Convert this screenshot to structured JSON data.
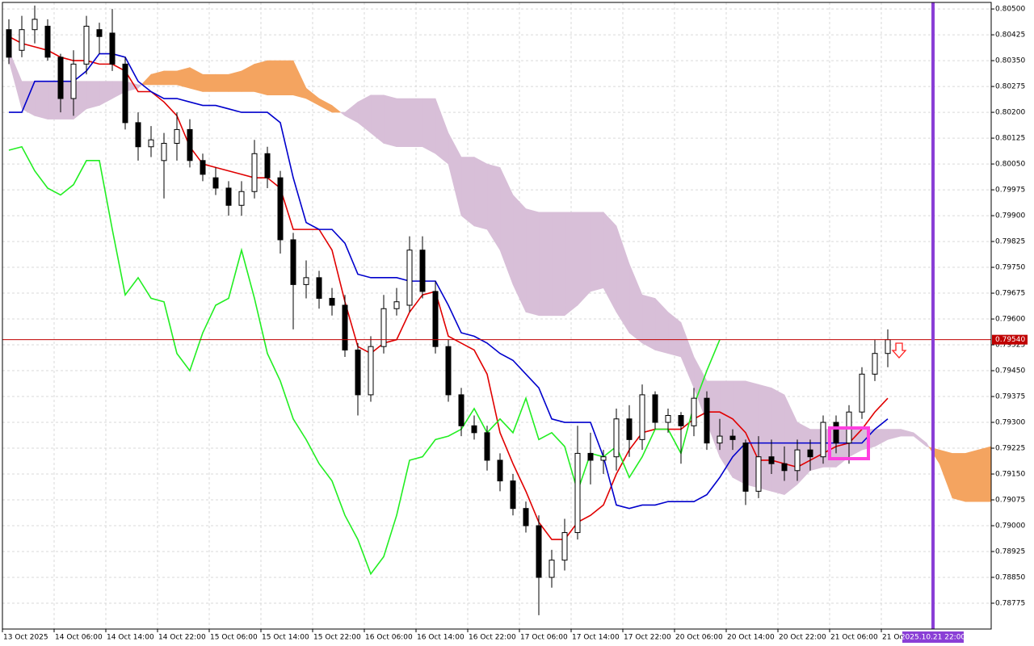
{
  "chart_data": {
    "type": "candlestick",
    "categories": [
      "13 Oct 2025",
      null,
      null,
      null,
      "14 Oct 06:00",
      null,
      null,
      null,
      "14 Oct 14:00",
      null,
      null,
      null,
      "14 Oct 22:00",
      null,
      null,
      null,
      "15 Oct 06:00",
      null,
      null,
      null,
      "15 Oct 14:00",
      null,
      null,
      null,
      "15 Oct 22:00",
      null,
      null,
      null,
      "16 Oct 06:00",
      null,
      null,
      null,
      "16 Oct 14:00",
      null,
      null,
      null,
      "16 Oct 22:00",
      null,
      null,
      null,
      "17 Oct 06:00",
      null,
      null,
      null,
      "17 Oct 14:00",
      null,
      null,
      null,
      "17 Oct 22:00",
      null,
      null,
      null,
      "20 Oct 06:00",
      null,
      null,
      null,
      "20 Oct 14:00",
      null,
      null,
      null,
      "20 Oct 22:00",
      null,
      null,
      null,
      "21 Oct 06:00",
      null,
      null,
      null,
      "21 Oc",
      null,
      null,
      null,
      null,
      null,
      null,
      null,
      null
    ],
    "open": [
      0.8044,
      0.8038,
      0.8044,
      0.8045,
      0.8036,
      0.8024,
      0.8034,
      0.8044,
      0.8043,
      0.8034,
      0.8017,
      0.801,
      0.8006,
      0.8011,
      0.8015,
      0.8006,
      0.8001,
      0.7998,
      0.7993,
      0.7997,
      0.8008,
      0.8001,
      0.7983,
      0.797,
      0.7972,
      0.7966,
      0.7964,
      0.7951,
      0.7938,
      0.7952,
      0.7963,
      0.7964,
      0.798,
      0.7968,
      0.7952,
      0.7938,
      0.7929,
      0.7927,
      0.7919,
      0.7913,
      0.7905,
      0.79,
      0.7885,
      0.789,
      0.7898,
      0.7921,
      0.7919,
      0.792,
      0.7931,
      0.7925,
      0.7938,
      0.793,
      0.7932,
      0.7929,
      0.7937,
      0.7924,
      0.7926,
      0.7924,
      0.791,
      0.792,
      0.7918,
      0.7916,
      0.7922,
      0.792,
      0.793,
      0.7924,
      0.7933,
      0.7944,
      0.795,
      null,
      null,
      null,
      null,
      null,
      null,
      null,
      null
    ],
    "high": [
      0.8047,
      0.8048,
      0.8051,
      0.8047,
      0.8037,
      0.8038,
      0.8048,
      0.8046,
      0.805,
      0.8036,
      0.802,
      0.8016,
      0.8014,
      0.802,
      0.8018,
      0.8008,
      0.8004,
      0.8,
      0.8,
      0.8012,
      0.801,
      0.8003,
      0.7985,
      0.7977,
      0.7974,
      0.7969,
      0.7967,
      0.7953,
      0.7955,
      0.7967,
      0.7969,
      0.7984,
      0.7984,
      0.7971,
      0.7954,
      0.794,
      0.7932,
      0.7929,
      0.7921,
      0.7915,
      0.7907,
      0.7903,
      0.7893,
      0.7902,
      0.7929,
      0.7927,
      0.7922,
      0.7934,
      0.7935,
      0.7941,
      0.7939,
      0.7934,
      0.7933,
      0.794,
      0.7939,
      0.7931,
      0.7928,
      0.7925,
      0.7926,
      0.7925,
      0.7923,
      0.7925,
      0.7925,
      0.7932,
      0.7932,
      0.7935,
      0.7946,
      0.7954,
      0.7957,
      null,
      null,
      null,
      null,
      null,
      null,
      null,
      null
    ],
    "low": [
      0.8034,
      0.8036,
      0.804,
      0.8035,
      0.802,
      0.8019,
      0.8031,
      0.8037,
      0.8032,
      0.8015,
      0.8006,
      0.8007,
      0.7995,
      0.8006,
      0.8004,
      0.8,
      0.7996,
      0.799,
      0.799,
      0.7995,
      0.7998,
      0.7979,
      0.7957,
      0.7966,
      0.7963,
      0.7961,
      0.7949,
      0.7932,
      0.7936,
      0.795,
      0.7961,
      0.7962,
      0.7966,
      0.795,
      0.7936,
      0.7926,
      0.7925,
      0.7916,
      0.791,
      0.7903,
      0.7898,
      0.7874,
      0.7882,
      0.7887,
      0.7896,
      0.7912,
      0.7915,
      0.7916,
      0.792,
      0.7922,
      0.7928,
      0.7927,
      0.7918,
      0.7926,
      0.7922,
      0.7922,
      0.7922,
      0.7906,
      0.7908,
      0.7915,
      0.7913,
      0.7913,
      0.7916,
      0.7918,
      0.7921,
      0.7918,
      0.7931,
      0.7942,
      0.7946,
      null,
      null,
      null,
      null,
      null,
      null,
      null,
      null
    ],
    "close": [
      0.8036,
      0.8044,
      0.8047,
      0.8036,
      0.8024,
      0.8034,
      0.8045,
      0.8042,
      0.8034,
      0.8017,
      0.801,
      0.8012,
      0.8011,
      0.8015,
      0.8006,
      0.8002,
      0.7998,
      0.7993,
      0.7997,
      0.8008,
      0.8001,
      0.7983,
      0.797,
      0.7972,
      0.7966,
      0.7964,
      0.7951,
      0.7938,
      0.7952,
      0.7963,
      0.7965,
      0.798,
      0.7968,
      0.7952,
      0.7938,
      0.7929,
      0.7927,
      0.7919,
      0.7913,
      0.7905,
      0.79,
      0.7885,
      0.789,
      0.7898,
      0.7921,
      0.7919,
      0.792,
      0.7931,
      0.7925,
      0.7938,
      0.793,
      0.7932,
      0.7929,
      0.7937,
      0.7924,
      0.7926,
      0.7925,
      0.791,
      0.792,
      0.7918,
      0.7916,
      0.7922,
      0.792,
      0.793,
      0.7924,
      0.7933,
      0.7944,
      0.795,
      0.7954,
      null,
      null,
      null,
      null,
      null,
      null,
      null,
      null
    ],
    "bull_color": "#ffffff",
    "bear_color": "#000000",
    "lines": [
      {
        "color": "#e00000",
        "values": [
          0.8042,
          0.804,
          0.8039,
          0.8038,
          0.8036,
          0.8035,
          0.8035,
          0.8034,
          0.8034,
          0.8032,
          0.8026,
          0.8026,
          0.8023,
          0.8019,
          0.801,
          0.8005,
          0.8004,
          0.8003,
          0.8002,
          0.8001,
          0.8001,
          0.7998,
          0.7986,
          0.7986,
          0.7986,
          0.798,
          0.7965,
          0.7952,
          0.795,
          0.7953,
          0.7954,
          0.7962,
          0.7967,
          0.7968,
          0.7955,
          0.7953,
          0.7951,
          0.7944,
          0.7927,
          0.7918,
          0.791,
          0.7901,
          0.7896,
          0.7896,
          0.7901,
          0.7903,
          0.7906,
          0.7915,
          0.7922,
          0.7927,
          0.7928,
          0.7928,
          0.7928,
          0.7931,
          0.7933,
          0.7933,
          0.7931,
          0.7927,
          0.7919,
          0.7919,
          0.7918,
          0.7917,
          0.7919,
          0.7921,
          0.7923,
          0.7924,
          0.7928,
          0.7933,
          0.7937,
          null,
          null,
          null,
          null,
          null,
          null,
          null,
          null
        ]
      },
      {
        "color": "#0000cc",
        "values": [
          0.802,
          0.802,
          0.8029,
          0.8029,
          0.8029,
          0.8029,
          0.8032,
          0.8037,
          0.8037,
          0.8036,
          0.8029,
          0.8026,
          0.8024,
          0.8024,
          0.8023,
          0.8022,
          0.8022,
          0.8021,
          0.802,
          0.802,
          0.802,
          0.8017,
          0.8001,
          0.7988,
          0.7986,
          0.7986,
          0.7982,
          0.7973,
          0.7972,
          0.7972,
          0.7972,
          0.7971,
          0.7971,
          0.7971,
          0.7964,
          0.7956,
          0.7955,
          0.7953,
          0.795,
          0.7948,
          0.7944,
          0.794,
          0.7931,
          0.793,
          0.793,
          0.793,
          0.792,
          0.7906,
          0.7905,
          0.7906,
          0.7906,
          0.7907,
          0.7907,
          0.7907,
          0.7909,
          0.7914,
          0.792,
          0.7924,
          0.7924,
          0.7924,
          0.7924,
          0.7924,
          0.7924,
          0.7924,
          0.7924,
          0.7924,
          0.7924,
          0.7928,
          0.7931,
          null,
          null,
          null,
          null,
          null,
          null,
          null,
          null
        ]
      },
      {
        "color": "#22ee22",
        "values": [
          0.8009,
          0.801,
          0.8003,
          0.7998,
          0.7996,
          0.7999,
          0.8006,
          0.8006,
          0.7986,
          0.7967,
          0.7972,
          0.7966,
          0.7965,
          0.795,
          0.7945,
          0.7956,
          0.7964,
          0.7966,
          0.798,
          0.7966,
          0.795,
          0.7942,
          0.7931,
          0.7925,
          0.7918,
          0.7913,
          0.7903,
          0.7896,
          0.7886,
          0.7891,
          0.7903,
          0.7919,
          0.792,
          0.7925,
          0.7926,
          0.7928,
          0.7934,
          0.7927,
          0.7931,
          0.7927,
          0.7937,
          0.7925,
          0.7927,
          0.7923,
          0.791,
          0.7921,
          0.792,
          0.7923,
          0.7914,
          0.792,
          0.7928,
          0.7928,
          0.7921,
          0.7935,
          0.7945,
          0.7954,
          null,
          null,
          null,
          null,
          null,
          null,
          null,
          null,
          null,
          null,
          null,
          null,
          null,
          null,
          null,
          null,
          null,
          null,
          null,
          null,
          null
        ]
      }
    ],
    "cloud": {
      "span_a": [
        0.8035,
        0.8021,
        0.8019,
        0.8018,
        0.8018,
        0.8018,
        0.8021,
        0.8022,
        0.8024,
        0.8026,
        0.8027,
        0.8031,
        0.8032,
        0.8032,
        0.8033,
        0.8031,
        0.8031,
        0.8031,
        0.8032,
        0.8034,
        0.8035,
        0.8035,
        0.8035,
        0.8027,
        0.8024,
        0.8022,
        0.8019,
        0.8017,
        0.8014,
        0.8011,
        0.801,
        0.801,
        0.801,
        0.8008,
        0.8005,
        0.799,
        0.7987,
        0.7986,
        0.798,
        0.797,
        0.7962,
        0.7961,
        0.7961,
        0.7961,
        0.7964,
        0.7968,
        0.7969,
        0.7962,
        0.7956,
        0.7953,
        0.7951,
        0.795,
        0.7949,
        0.794,
        0.793,
        0.792,
        0.7914,
        0.7912,
        0.7911,
        0.791,
        0.7909,
        0.7912,
        0.7916,
        0.7917,
        0.7917,
        0.792,
        0.7922,
        0.7923,
        0.7925,
        0.7926,
        0.7926,
        0.7923,
        0.7922,
        0.7921,
        0.7921,
        0.7922,
        0.7923
      ],
      "span_b": [
        0.8038,
        0.8029,
        0.8029,
        0.8029,
        0.8029,
        0.8029,
        0.8029,
        0.8029,
        0.8029,
        0.8029,
        0.8028,
        0.8028,
        0.8028,
        0.8028,
        0.8027,
        0.8026,
        0.8026,
        0.8026,
        0.8026,
        0.8026,
        0.8025,
        0.8025,
        0.8025,
        0.8024,
        0.8022,
        0.802,
        0.802,
        0.8023,
        0.8025,
        0.8025,
        0.8024,
        0.8024,
        0.8024,
        0.8024,
        0.8014,
        0.8007,
        0.8007,
        0.8005,
        0.8004,
        0.7996,
        0.7992,
        0.7991,
        0.7991,
        0.7991,
        0.7991,
        0.7991,
        0.7991,
        0.7987,
        0.7976,
        0.7967,
        0.7966,
        0.7962,
        0.7959,
        0.7949,
        0.7942,
        0.7942,
        0.7942,
        0.7942,
        0.7941,
        0.794,
        0.7938,
        0.793,
        0.7928,
        0.7928,
        0.7928,
        0.7928,
        0.7928,
        0.7928,
        0.7928,
        0.7928,
        0.7927,
        0.7924,
        0.7918,
        0.7908,
        0.7907,
        0.7907,
        0.7907
      ],
      "color_a_above": "#f4a460",
      "color_b_above": "#d8bfd8"
    },
    "price_line": {
      "value": 0.7954,
      "label": "0.79540",
      "color": "#c00000"
    },
    "vline": {
      "index": 72,
      "label": "2025.10.21 22:00",
      "color": "#8a3fd6"
    },
    "ylim": [
      0.787,
      0.80519
    ],
    "yticks": [
      {
        "value": 0.78775,
        "label": "0.78775"
      },
      {
        "value": 0.7885,
        "label": "0.78850"
      },
      {
        "value": 0.78925,
        "label": "0.78925"
      },
      {
        "value": 0.79,
        "label": "0.79000"
      },
      {
        "value": 0.79075,
        "label": "0.79075"
      },
      {
        "value": 0.7915,
        "label": "0.79150"
      },
      {
        "value": 0.79225,
        "label": "0.79225"
      },
      {
        "value": 0.793,
        "label": "0.79300"
      },
      {
        "value": 0.79375,
        "label": "0.79375"
      },
      {
        "value": 0.7945,
        "label": "0.79450"
      },
      {
        "value": 0.79525,
        "label": "0.79525"
      },
      {
        "value": 0.796,
        "label": "0.79600"
      },
      {
        "value": 0.79675,
        "label": "0.79675"
      },
      {
        "value": 0.7975,
        "label": "0.79750"
      },
      {
        "value": 0.79825,
        "label": "0.79825"
      },
      {
        "value": 0.799,
        "label": "0.79900"
      },
      {
        "value": 0.79975,
        "label": "0.79975"
      },
      {
        "value": 0.8005,
        "label": "0.80050"
      },
      {
        "value": 0.80125,
        "label": "0.80125"
      },
      {
        "value": 0.802,
        "label": "0.80200"
      },
      {
        "value": 0.80275,
        "label": "0.80275"
      },
      {
        "value": 0.8035,
        "label": "0.80350"
      },
      {
        "value": 0.80425,
        "label": "0.80425"
      },
      {
        "value": 0.805,
        "label": "0.80500"
      }
    ],
    "grid": true
  }
}
